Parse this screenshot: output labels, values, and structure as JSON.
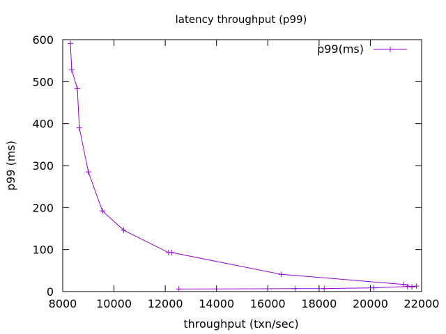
{
  "chart_data": {
    "type": "line",
    "title": "latency throughput (p99)",
    "xlabel": "throughput (txn/sec)",
    "ylabel": "p99 (ms)",
    "xlim": [
      8000,
      22000
    ],
    "ylim": [
      0,
      600
    ],
    "x_ticks": [
      8000,
      10000,
      12000,
      14000,
      16000,
      18000,
      20000,
      22000
    ],
    "y_ticks": [
      0,
      100,
      200,
      300,
      400,
      500,
      600
    ],
    "grid": false,
    "legend_position": "top-right",
    "series": [
      {
        "name": "p99(ms)",
        "color": "#9400d3",
        "marker": "plus",
        "points": [
          [
            8300,
            591
          ],
          [
            8350,
            528
          ],
          [
            8570,
            483
          ],
          [
            8650,
            390
          ],
          [
            9000,
            285
          ],
          [
            9550,
            192
          ],
          [
            10380,
            146
          ],
          [
            12130,
            93
          ],
          [
            12250,
            93
          ],
          [
            16530,
            41
          ],
          [
            21300,
            17
          ],
          [
            21620,
            11
          ],
          [
            21800,
            13
          ],
          [
            21450,
            12
          ],
          [
            20130,
            9
          ],
          [
            18200,
            7
          ],
          [
            17070,
            7
          ],
          [
            12530,
            6
          ]
        ]
      }
    ]
  }
}
